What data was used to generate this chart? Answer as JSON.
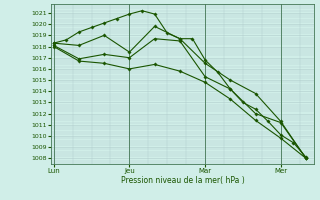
{
  "xlabel": "Pression niveau de la mer( hPa )",
  "bg_color": "#d0eee8",
  "grid_color": "#b0cccc",
  "line_color": "#1a5500",
  "vline_color": "#447755",
  "ylim_min": 1007.5,
  "ylim_max": 1021.8,
  "xlim_min": -0.1,
  "xlim_max": 10.3,
  "yticks": [
    1008,
    1009,
    1010,
    1011,
    1012,
    1013,
    1014,
    1015,
    1016,
    1017,
    1018,
    1019,
    1020,
    1021
  ],
  "xtick_positions": [
    0,
    3,
    6,
    9
  ],
  "xtick_labels": [
    "Lun",
    "Jeu",
    "Mar",
    "Mer"
  ],
  "series": [
    {
      "x": [
        0,
        0.5,
        1,
        1.5,
        2,
        2.5,
        3,
        3.5,
        4,
        4.5,
        5,
        5.5,
        6,
        6.5,
        7,
        7.5,
        8,
        8.5,
        9,
        9.5,
        10
      ],
      "y": [
        1018.3,
        1018.6,
        1019.3,
        1019.7,
        1020.1,
        1020.5,
        1020.9,
        1021.2,
        1020.9,
        1019.2,
        1018.7,
        1018.7,
        1016.8,
        1015.7,
        1014.2,
        1013.0,
        1012.4,
        1011.3,
        1010.1,
        1009.4,
        1008.1
      ]
    },
    {
      "x": [
        0,
        1,
        2,
        3,
        4,
        5,
        6,
        7,
        8,
        9,
        10
      ],
      "y": [
        1018.3,
        1018.1,
        1019.0,
        1017.5,
        1019.8,
        1018.7,
        1016.5,
        1015.0,
        1013.8,
        1011.3,
        1008.0
      ]
    },
    {
      "x": [
        0,
        1,
        2,
        3,
        4,
        5,
        6,
        7,
        8,
        9,
        10
      ],
      "y": [
        1018.1,
        1016.9,
        1017.3,
        1017.0,
        1018.7,
        1018.5,
        1015.3,
        1014.2,
        1012.0,
        1011.2,
        1008.0
      ]
    },
    {
      "x": [
        0,
        1,
        2,
        3,
        4,
        5,
        6,
        7,
        8,
        9,
        10
      ],
      "y": [
        1018.0,
        1016.7,
        1016.5,
        1016.0,
        1016.4,
        1015.8,
        1014.8,
        1013.3,
        1011.4,
        1009.8,
        1008.0
      ]
    }
  ]
}
